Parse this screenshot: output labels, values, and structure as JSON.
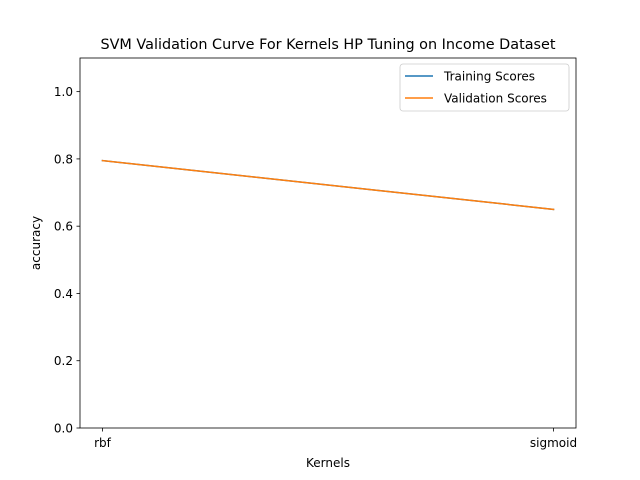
{
  "chart_data": {
    "type": "line",
    "title": "SVM Validation Curve For Kernels HP Tuning on Income Dataset",
    "xlabel": "Kernels",
    "ylabel": "accuracy",
    "categories": [
      "rbf",
      "sigmoid"
    ],
    "ylim": [
      0,
      1.1
    ],
    "yticks": [
      0.0,
      0.2,
      0.4,
      0.6,
      0.8,
      1.0
    ],
    "ytick_labels": [
      "0.0",
      "0.2",
      "0.4",
      "0.6",
      "0.8",
      "1.0"
    ],
    "grid": false,
    "legend_position": "top-right",
    "series": [
      {
        "name": "Training Scores",
        "color": "#1f77b4",
        "values": [
          0.795,
          0.65
        ]
      },
      {
        "name": "Validation Scores",
        "color": "#ff7f0e",
        "values": [
          0.795,
          0.65
        ]
      }
    ]
  }
}
